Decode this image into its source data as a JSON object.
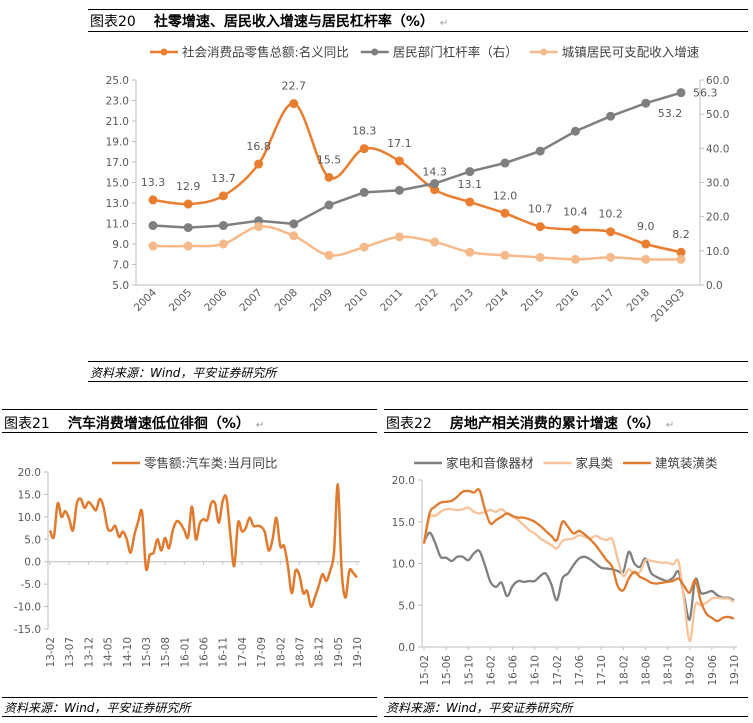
{
  "figure20": {
    "number": "图表20",
    "title": "社零增速、居民收入增速与居民杠杆率（%）",
    "source": "资料来源：Wind，平安证券研究所"
  },
  "figure21": {
    "number": "图表21",
    "title": "汽车消费增速低位徘徊（%）",
    "source": "资料来源：Wind，平安证券研究所"
  },
  "figure22": {
    "number": "图表22",
    "title": "房地产相关消费的累计增速（%）",
    "source": "资料来源：Wind，平安证券研究所"
  },
  "chart_data": [
    {
      "type": "line",
      "categories": [
        "2004",
        "2005",
        "2006",
        "2007",
        "2008",
        "2009",
        "2010",
        "2011",
        "2012",
        "2013",
        "2014",
        "2015",
        "2016",
        "2017",
        "2018",
        "2019Q3"
      ],
      "ylim": [
        5,
        25
      ],
      "yticks": [
        "5.0",
        "7.0",
        "9.0",
        "11.0",
        "13.0",
        "15.0",
        "17.0",
        "19.0",
        "21.0",
        "23.0",
        "25.0"
      ],
      "y2lim": [
        0,
        60
      ],
      "y2ticks": [
        "0.0",
        "10.0",
        "20.0",
        "30.0",
        "40.0",
        "50.0",
        "60.0"
      ],
      "legend": "top",
      "series": [
        {
          "name": "社会消费品零售总额:名义同比",
          "axis": "left",
          "color": "#E97D30",
          "markers": true,
          "labels": true,
          "values": [
            13.3,
            12.9,
            13.7,
            16.8,
            22.7,
            15.5,
            18.3,
            17.1,
            14.3,
            13.1,
            12.0,
            10.7,
            10.4,
            10.2,
            9.0,
            8.2
          ]
        },
        {
          "name": "居民部门杠杆率（右）",
          "axis": "right",
          "color": "#7F7F7F",
          "markers": true,
          "labels_last": [
            "53.2",
            "56.3"
          ],
          "values": [
            17.4,
            16.8,
            17.4,
            18.8,
            17.9,
            23.4,
            27.1,
            27.7,
            29.7,
            33.2,
            35.7,
            39.2,
            45.0,
            49.4,
            53.2,
            56.3
          ]
        },
        {
          "name": "城镇居民可支配收入增速",
          "axis": "left",
          "color": "#F6B98A",
          "markers": true,
          "values": [
            8.8,
            8.8,
            9.0,
            10.7,
            9.8,
            7.9,
            8.7,
            9.7,
            9.2,
            8.2,
            7.9,
            7.7,
            7.5,
            7.7,
            7.5,
            7.5
          ]
        }
      ]
    },
    {
      "type": "line",
      "xticks": [
        "13-02",
        "13-07",
        "13-12",
        "14-05",
        "14-10",
        "15-03",
        "15-08",
        "16-01",
        "16-06",
        "16-11",
        "17-04",
        "17-09",
        "18-02",
        "18-07",
        "18-12",
        "19-05",
        "19-10"
      ],
      "ylim": [
        -15,
        20
      ],
      "yticks": [
        "-15.0",
        "-10.0",
        "-5.0",
        "0.0",
        "5.0",
        "10.0",
        "15.0",
        "20.0"
      ],
      "legend": "top",
      "series": [
        {
          "name": "零售额:汽车类:当月同比",
          "color": "#E07A2E",
          "values": [
            7,
            5.5,
            13,
            10,
            11.3,
            9.5,
            7,
            13,
            14,
            12,
            13.3,
            12.5,
            11.5,
            14,
            12,
            7.5,
            7,
            8,
            5.5,
            6.7,
            5,
            2,
            6,
            9,
            11,
            -1.5,
            1.5,
            2,
            5,
            2.5,
            5.3,
            3,
            7,
            9,
            8.5,
            7,
            5.5,
            12.3,
            5,
            8.5,
            9.5,
            9.3,
            13,
            13,
            8.7,
            13.5,
            14.2,
            6,
            -1,
            8.7,
            6.8,
            7.5,
            9.8,
            8,
            8,
            7.8,
            6.5,
            2.5,
            5,
            9.8,
            3.5,
            3.5,
            -1,
            -7,
            -2,
            -3,
            -7,
            -6.5,
            -10,
            -8,
            -5.5,
            -2.8,
            -4.3,
            -2,
            2,
            17.2,
            -2,
            -8,
            -2,
            -2.5,
            -3.5
          ]
        }
      ]
    },
    {
      "type": "line",
      "xticks": [
        "15-02",
        "15-06",
        "15-10",
        "16-02",
        "16-06",
        "16-10",
        "17-02",
        "17-06",
        "17-10",
        "18-02",
        "18-06",
        "18-10",
        "19-02",
        "19-06",
        "19-10"
      ],
      "ylim": [
        0,
        20
      ],
      "yticks": [
        "0.0",
        "5.0",
        "10.0",
        "15.0",
        "20.0"
      ],
      "legend": "top",
      "series": [
        {
          "name": "家电和音像器材",
          "color": "#7F7F7F",
          "values": [
            12.5,
            13.7,
            12.5,
            10.8,
            10.7,
            10.3,
            10.8,
            10.8,
            10.4,
            11.2,
            11.5,
            9.8,
            7.8,
            7.2,
            7.7,
            6.1,
            7.3,
            7.9,
            7.8,
            7.9,
            7.9,
            8.5,
            8.8,
            7.5,
            5.6,
            8.2,
            8.8,
            9.8,
            10.6,
            10.8,
            10.5,
            10.0,
            9.5,
            9.4,
            9.3,
            9.1,
            9.0,
            11.4,
            10.0,
            9.6,
            10.6,
            8.9,
            8.4,
            8.1,
            7.9,
            8.3,
            9.0,
            6.0,
            3.3,
            8.1,
            6.5,
            6.5,
            6.7,
            6.2,
            5.9,
            5.9,
            5.6
          ]
        },
        {
          "name": "家具类",
          "color": "#F8C39B",
          "values": [
            12.3,
            15.5,
            15.7,
            16.2,
            16.5,
            16.5,
            16.4,
            16.5,
            16.7,
            16.2,
            16.0,
            16.2,
            16.4,
            16.2,
            16.5,
            16.0,
            15.6,
            15.2,
            14.6,
            14.0,
            13.6,
            13.0,
            12.6,
            12.2,
            11.8,
            12.7,
            12.9,
            13.0,
            13.4,
            13.2,
            13.0,
            13.3,
            13.0,
            12.8,
            12.9,
            10.5,
            8.5,
            9.3,
            8.8,
            9.0,
            10.4,
            10.3,
            10.2,
            10.1,
            10.1,
            9.9,
            10.2,
            5.5,
            0.7,
            5.0,
            5.0,
            5.3,
            5.8,
            5.9,
            5.8,
            5.8,
            5.4
          ]
        },
        {
          "name": "建筑装潢类",
          "color": "#E07A2E",
          "values": [
            12.4,
            16.0,
            16.8,
            17.3,
            17.4,
            17.5,
            18.0,
            18.6,
            18.7,
            18.5,
            18.8,
            16.5,
            14.8,
            15.2,
            15.6,
            16.0,
            15.7,
            15.5,
            15.5,
            15.3,
            15.0,
            14.5,
            13.9,
            13.3,
            12.8,
            15.0,
            14.4,
            13.6,
            13.9,
            13.5,
            12.9,
            12.2,
            11.3,
            10.4,
            9.6,
            7.3,
            6.8,
            8.2,
            9.0,
            8.4,
            8.1,
            7.7,
            7.6,
            7.7,
            7.8,
            7.9,
            8.2,
            7.3,
            6.5,
            8.0,
            5.5,
            4.0,
            3.5,
            3.1,
            3.5,
            3.6,
            3.4
          ]
        }
      ]
    }
  ]
}
